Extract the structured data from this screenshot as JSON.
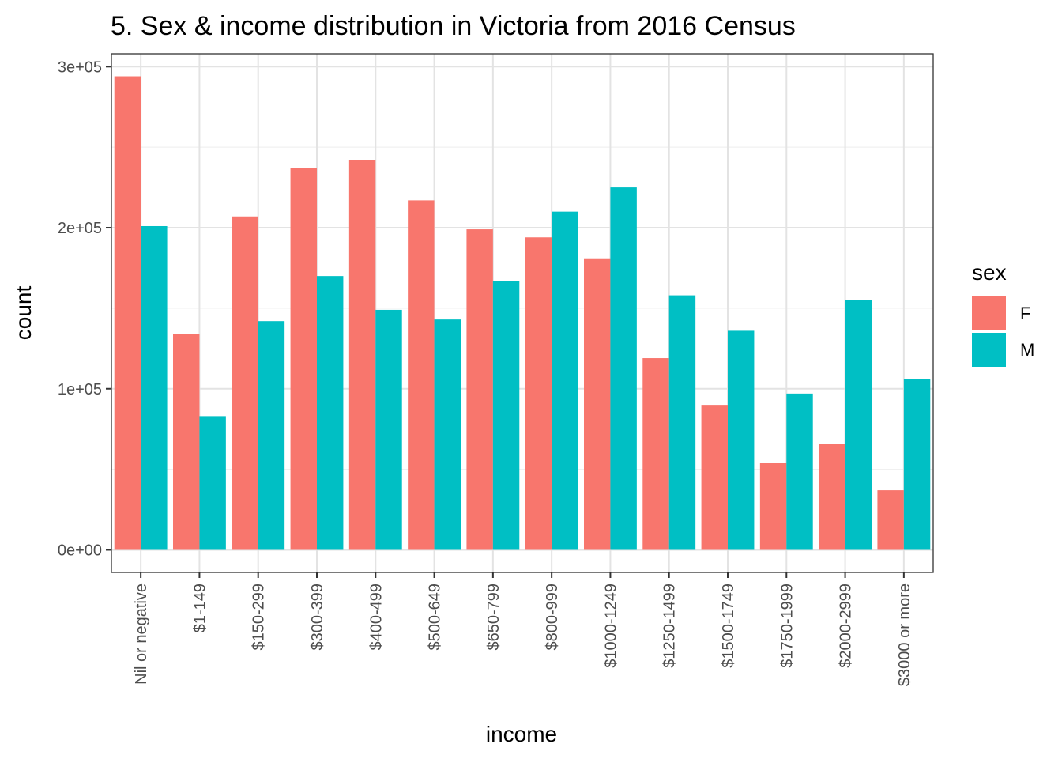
{
  "chart_data": {
    "type": "bar",
    "title": "5. Sex & income distribution in Victoria from 2016 Census",
    "xlabel": "income",
    "ylabel": "count",
    "categories": [
      "Nil or negative",
      "$1-149",
      "$150-299",
      "$300-399",
      "$400-499",
      "$500-649",
      "$650-799",
      "$800-999",
      "$1000-1249",
      "$1250-1499",
      "$1500-1749",
      "$1750-1999",
      "$2000-2999",
      "$3000 or more"
    ],
    "series": [
      {
        "name": "F",
        "color": "#F8766D",
        "values": [
          294000,
          134000,
          207000,
          237000,
          242000,
          217000,
          199000,
          194000,
          181000,
          119000,
          90000,
          54000,
          66000,
          37000
        ]
      },
      {
        "name": "M",
        "color": "#00BFC4",
        "values": [
          201000,
          83000,
          142000,
          170000,
          149000,
          143000,
          167000,
          210000,
          225000,
          158000,
          136000,
          97000,
          155000,
          106000
        ]
      }
    ],
    "ylim": [
      -14000,
      308000
    ],
    "yticks": [
      0,
      100000,
      200000,
      300000
    ],
    "ytick_labels": [
      "0e+00",
      "1e+05",
      "2e+05",
      "3e+05"
    ],
    "legend_title": "sex",
    "legend_position": "right",
    "grid": true,
    "theme": "bw"
  }
}
